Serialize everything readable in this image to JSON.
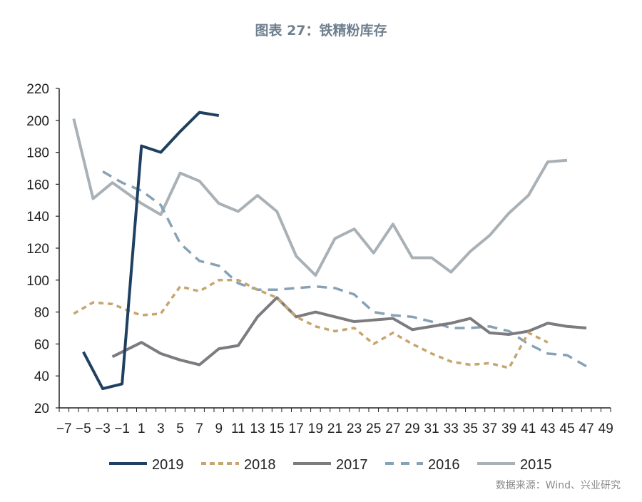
{
  "title": "图表 27：铁精粉库存",
  "source": "数据来源：Wind、兴业研究",
  "chart_data": {
    "type": "line",
    "title": "图表 27：铁精粉库存",
    "xlabel": "",
    "ylabel": "",
    "xlim": [
      -7,
      49
    ],
    "ylim": [
      20,
      220
    ],
    "x_ticks": [
      "-7",
      "-5",
      "-3",
      "-1",
      "1",
      "3",
      "5",
      "7",
      "9",
      "11",
      "13",
      "15",
      "17",
      "19",
      "21",
      "23",
      "25",
      "27",
      "29",
      "31",
      "33",
      "35",
      "37",
      "39",
      "41",
      "43",
      "45",
      "47",
      "49"
    ],
    "y_ticks": [
      "20",
      "40",
      "60",
      "80",
      "100",
      "120",
      "140",
      "160",
      "180",
      "200",
      "220"
    ],
    "grid": false,
    "legend": "bottom",
    "series": [
      {
        "name": "2019",
        "color": "#1f4060",
        "style": "solid",
        "points": [
          [
            -5,
            55
          ],
          [
            -3,
            32
          ],
          [
            -1,
            35
          ],
          [
            1,
            184
          ],
          [
            3,
            180
          ],
          [
            5,
            193
          ],
          [
            7,
            205
          ],
          [
            9,
            203
          ]
        ]
      },
      {
        "name": "2018",
        "color": "#c6a56e",
        "style": "dotted",
        "points": [
          [
            -6,
            79
          ],
          [
            -4,
            86
          ],
          [
            -2,
            85
          ],
          [
            0,
            80
          ],
          [
            1,
            78
          ],
          [
            3,
            79
          ],
          [
            5,
            96
          ],
          [
            7,
            93
          ],
          [
            9,
            100
          ],
          [
            11,
            100
          ],
          [
            13,
            94
          ],
          [
            15,
            89
          ],
          [
            17,
            77
          ],
          [
            19,
            71
          ],
          [
            21,
            68
          ],
          [
            23,
            70
          ],
          [
            25,
            60
          ],
          [
            27,
            67
          ],
          [
            29,
            60
          ],
          [
            31,
            54
          ],
          [
            33,
            49
          ],
          [
            35,
            47
          ],
          [
            37,
            48
          ],
          [
            39,
            45
          ],
          [
            41,
            67
          ],
          [
            43,
            61
          ]
        ]
      },
      {
        "name": "2017",
        "color": "#7b7b80",
        "style": "solid",
        "points": [
          [
            -2,
            52
          ],
          [
            1,
            61
          ],
          [
            3,
            54
          ],
          [
            5,
            50
          ],
          [
            7,
            47
          ],
          [
            9,
            57
          ],
          [
            11,
            59
          ],
          [
            13,
            77
          ],
          [
            15,
            89
          ],
          [
            17,
            77
          ],
          [
            19,
            80
          ],
          [
            21,
            77
          ],
          [
            23,
            74
          ],
          [
            25,
            75
          ],
          [
            27,
            76
          ],
          [
            29,
            69
          ],
          [
            31,
            71
          ],
          [
            33,
            73
          ],
          [
            35,
            76
          ],
          [
            37,
            67
          ],
          [
            39,
            66
          ],
          [
            41,
            68
          ],
          [
            43,
            73
          ],
          [
            45,
            71
          ],
          [
            47,
            70
          ]
        ]
      },
      {
        "name": "2016",
        "color": "#87a1b5",
        "style": "dashed",
        "points": [
          [
            -3,
            168
          ],
          [
            -1,
            161
          ],
          [
            1,
            156
          ],
          [
            3,
            147
          ],
          [
            5,
            123
          ],
          [
            7,
            112
          ],
          [
            9,
            109
          ],
          [
            11,
            98
          ],
          [
            13,
            94
          ],
          [
            15,
            94
          ],
          [
            17,
            95
          ],
          [
            19,
            96
          ],
          [
            21,
            95
          ],
          [
            23,
            91
          ],
          [
            25,
            80
          ],
          [
            27,
            78
          ],
          [
            29,
            77
          ],
          [
            31,
            74
          ],
          [
            33,
            70
          ],
          [
            35,
            70
          ],
          [
            37,
            71
          ],
          [
            39,
            68
          ],
          [
            41,
            60
          ],
          [
            43,
            54
          ],
          [
            45,
            53
          ],
          [
            47,
            46
          ]
        ]
      },
      {
        "name": "2015",
        "color": "#a9b1b6",
        "style": "solid",
        "points": [
          [
            -6,
            201
          ],
          [
            -4,
            151
          ],
          [
            -2,
            161
          ],
          [
            1,
            148
          ],
          [
            3,
            141
          ],
          [
            5,
            167
          ],
          [
            7,
            162
          ],
          [
            9,
            148
          ],
          [
            11,
            143
          ],
          [
            13,
            153
          ],
          [
            15,
            143
          ],
          [
            17,
            115
          ],
          [
            19,
            103
          ],
          [
            21,
            126
          ],
          [
            23,
            132
          ],
          [
            25,
            117
          ],
          [
            27,
            135
          ],
          [
            29,
            114
          ],
          [
            31,
            114
          ],
          [
            33,
            105
          ],
          [
            35,
            118
          ],
          [
            37,
            128
          ],
          [
            39,
            142
          ],
          [
            41,
            153
          ],
          [
            43,
            174
          ],
          [
            45,
            175
          ]
        ]
      }
    ]
  }
}
